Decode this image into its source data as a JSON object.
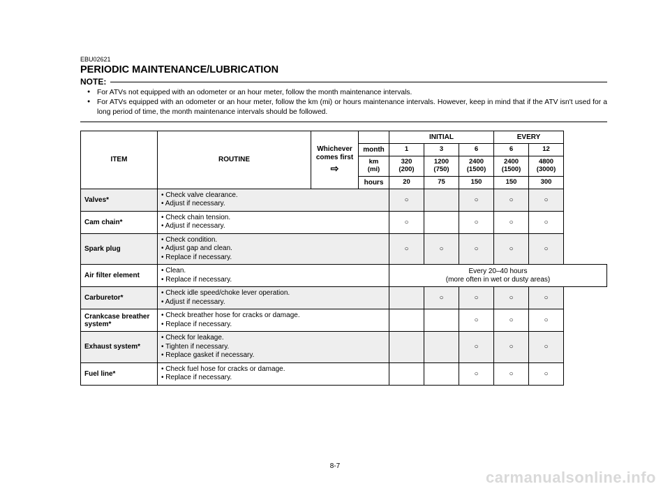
{
  "doc_code": "EBU02621",
  "title": "PERIODIC MAINTENANCE/LUBRICATION",
  "note_label": "NOTE:",
  "notes": [
    "For ATVs not equipped with an odometer or an hour meter, follow the month maintenance intervals.",
    "For ATVs equipped with an odometer or an hour meter, follow the km (mi) or hours maintenance intervals. However, keep in mind that if the ATV isn't used for a long period of time, the month maintenance intervals should be followed."
  ],
  "headers": {
    "item": "ITEM",
    "routine": "ROUTINE",
    "whichever": "Whichever\ncomes first",
    "initial": "INITIAL",
    "every": "EVERY",
    "month": "month",
    "km": "km\n(mi)",
    "hours": "hours",
    "months": [
      "1",
      "3",
      "6",
      "6",
      "12"
    ],
    "kms": [
      "320\n(200)",
      "1200\n(750)",
      "2400\n(1500)",
      "2400\n(1500)",
      "4800\n(3000)"
    ],
    "hrs": [
      "20",
      "75",
      "150",
      "150",
      "300"
    ]
  },
  "rows": [
    {
      "item": "Valves*",
      "routine": "• Check valve clearance.\n• Adjust if necessary.",
      "checks": [
        "○",
        "",
        "○",
        "○",
        "○"
      ],
      "shade": true
    },
    {
      "item": "Cam chain*",
      "routine": "• Check chain tension.\n• Adjust if necessary.",
      "checks": [
        "○",
        "",
        "○",
        "○",
        "○"
      ],
      "shade": false
    },
    {
      "item": "Spark plug",
      "routine": "• Check condition.\n• Adjust gap and clean.\n• Replace if necessary.",
      "checks": [
        "○",
        "○",
        "○",
        "○",
        "○"
      ],
      "shade": true
    },
    {
      "item": "Air filter element",
      "routine": "• Clean.\n• Replace if necessary.",
      "span_text": "Every 20–40 hours\n(more often in wet or dusty areas)",
      "shade": false
    },
    {
      "item": "Carburetor*",
      "routine": "• Check idle speed/choke lever operation.\n• Adjust if necessary.",
      "checks": [
        "",
        "○",
        "○",
        "○",
        "○"
      ],
      "shade": true
    },
    {
      "item": "Crankcase breather system*",
      "routine": "• Check breather hose for cracks or damage.\n• Replace if necessary.",
      "checks": [
        "",
        "",
        "○",
        "○",
        "○"
      ],
      "shade": false
    },
    {
      "item": "Exhaust system*",
      "routine": "• Check for leakage.\n• Tighten if necessary.\n• Replace gasket if necessary.",
      "checks": [
        "",
        "",
        "○",
        "○",
        "○"
      ],
      "shade": true
    },
    {
      "item": "Fuel line*",
      "routine": "• Check fuel hose for cracks or damage.\n• Replace if necessary.",
      "checks": [
        "",
        "",
        "○",
        "○",
        "○"
      ],
      "shade": false
    }
  ],
  "page_number": "8-7",
  "watermark": "carmanualsonline.info",
  "colors": {
    "shade_bg": "#eeeeee",
    "text": "#000000",
    "watermark": "#d9d9d9"
  }
}
